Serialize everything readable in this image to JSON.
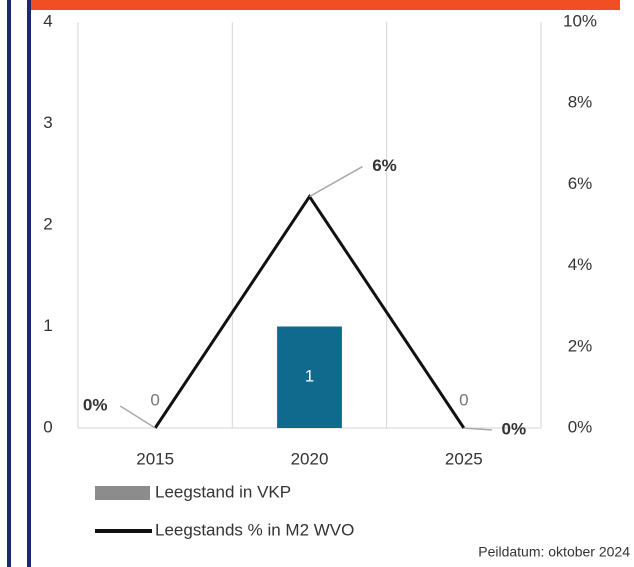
{
  "chart_data": {
    "type": "bar-line",
    "categories": [
      "2015",
      "2020",
      "2025"
    ],
    "series": [
      {
        "name": "Leegstand in VKP",
        "type": "bar",
        "color": "#0f6a8d",
        "legend_color": "#8c8c8c",
        "values": [
          0,
          1,
          0
        ]
      },
      {
        "name": "Leegstands % in M2 WVO",
        "type": "line",
        "axis": "y2",
        "color": "#111111",
        "values": [
          0,
          5.7,
          0
        ],
        "value_labels": [
          "0%",
          "6%",
          "0%"
        ]
      }
    ],
    "ylim": [
      0,
      4
    ],
    "yticks": [
      0,
      1,
      2,
      3,
      4
    ],
    "y2lim": [
      0,
      10
    ],
    "y2ticks": [
      {
        "value": 0,
        "label": "0%"
      },
      {
        "value": 2,
        "label": "2%"
      },
      {
        "value": 4,
        "label": "4%"
      },
      {
        "value": 6,
        "label": "6%"
      },
      {
        "value": 8,
        "label": "8%"
      },
      {
        "value": 10,
        "label": "10%"
      }
    ],
    "grid": "vertical",
    "note": "Peildatum: oktober 2024"
  }
}
